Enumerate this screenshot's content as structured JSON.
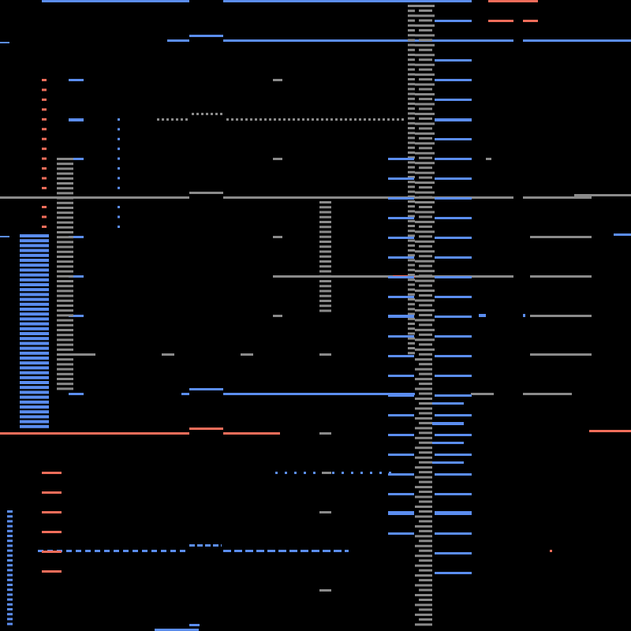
{
  "colors": {
    "background": "#000000",
    "blue": "#5b8def",
    "gray": "#8a8a8a",
    "orange": "#f06d5a"
  }
}
